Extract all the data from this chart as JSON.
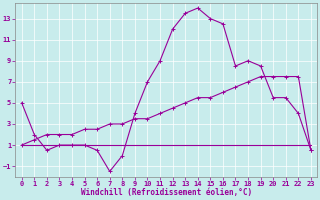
{
  "xlabel": "Windchill (Refroidissement éolien,°C)",
  "background_color": "#c8ecec",
  "line_color": "#990099",
  "xlim": [
    -0.5,
    23.5
  ],
  "ylim": [
    -2.0,
    14.5
  ],
  "yticks": [
    -1,
    1,
    3,
    5,
    7,
    9,
    11,
    13
  ],
  "xticks": [
    0,
    1,
    2,
    3,
    4,
    5,
    6,
    7,
    8,
    9,
    10,
    11,
    12,
    13,
    14,
    15,
    16,
    17,
    18,
    19,
    20,
    21,
    22,
    23
  ],
  "line1_x": [
    0,
    1,
    2,
    3,
    4,
    5,
    6,
    7,
    8,
    9,
    10,
    11,
    12,
    13,
    14,
    15,
    16,
    17,
    18,
    19,
    20,
    21,
    22,
    23
  ],
  "line1_y": [
    5.0,
    2.0,
    0.5,
    1.0,
    1.0,
    1.0,
    0.5,
    -1.5,
    0.0,
    4.0,
    7.0,
    9.0,
    12.0,
    13.5,
    14.0,
    13.0,
    12.5,
    8.5,
    9.0,
    8.5,
    5.5,
    5.5,
    4.0,
    0.5
  ],
  "line2_x": [
    0,
    1,
    2,
    3,
    4,
    5,
    6,
    7,
    8,
    9,
    10,
    11,
    12,
    13,
    14,
    15,
    16,
    17,
    18,
    19,
    20,
    21,
    22,
    23
  ],
  "line2_y": [
    1.0,
    1.5,
    2.0,
    2.0,
    2.0,
    2.5,
    2.5,
    3.0,
    3.0,
    3.5,
    3.5,
    4.0,
    4.5,
    5.0,
    5.5,
    5.5,
    6.0,
    6.5,
    7.0,
    7.5,
    7.5,
    7.5,
    7.5,
    0.5
  ],
  "line3_x": [
    0,
    23
  ],
  "line3_y": [
    1.0,
    1.0
  ],
  "markersize": 3,
  "linewidth": 0.8,
  "tick_fontsize": 5.0,
  "xlabel_fontsize": 5.5
}
